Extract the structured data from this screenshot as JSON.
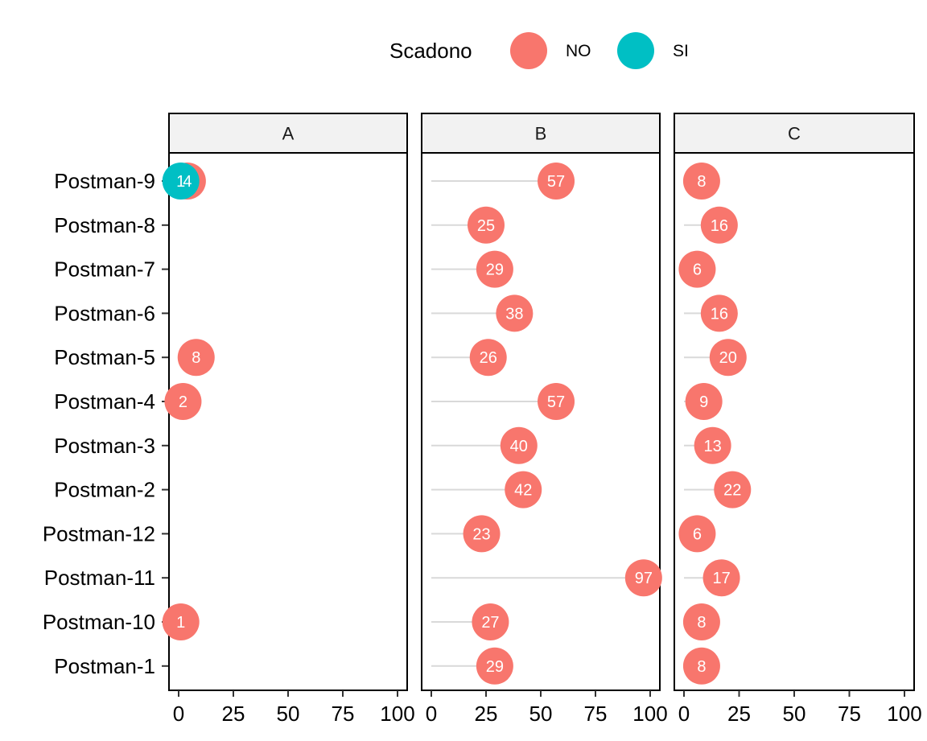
{
  "legend": {
    "title": "Scadono",
    "items": [
      {
        "label": "NO",
        "color": "#F8766D"
      },
      {
        "label": "SI",
        "color": "#00BFC4"
      }
    ]
  },
  "chart_data": {
    "type": "scatter",
    "subtype": "faceted lollipop (dot plot with segments)",
    "facets": [
      "A",
      "B",
      "C"
    ],
    "categories": [
      "Postman-9",
      "Postman-8",
      "Postman-7",
      "Postman-6",
      "Postman-5",
      "Postman-4",
      "Postman-3",
      "Postman-2",
      "Postman-12",
      "Postman-11",
      "Postman-10",
      "Postman-1"
    ],
    "x_ticks": [
      "0",
      "25",
      "50",
      "75",
      "100"
    ],
    "xlim": [
      0,
      100
    ],
    "legend_title": "Scadono",
    "legend_position": "top",
    "grid": false,
    "points": [
      {
        "facet": "A",
        "category": "Postman-9",
        "group": "NO",
        "value": 4
      },
      {
        "facet": "A",
        "category": "Postman-9",
        "group": "SI",
        "value": 1
      },
      {
        "facet": "A",
        "category": "Postman-5",
        "group": "NO",
        "value": 8
      },
      {
        "facet": "A",
        "category": "Postman-4",
        "group": "NO",
        "value": 2
      },
      {
        "facet": "A",
        "category": "Postman-10",
        "group": "NO",
        "value": 1
      },
      {
        "facet": "B",
        "category": "Postman-9",
        "group": "NO",
        "value": 57
      },
      {
        "facet": "B",
        "category": "Postman-8",
        "group": "NO",
        "value": 25
      },
      {
        "facet": "B",
        "category": "Postman-7",
        "group": "NO",
        "value": 29
      },
      {
        "facet": "B",
        "category": "Postman-6",
        "group": "NO",
        "value": 38
      },
      {
        "facet": "B",
        "category": "Postman-5",
        "group": "NO",
        "value": 26
      },
      {
        "facet": "B",
        "category": "Postman-4",
        "group": "NO",
        "value": 57
      },
      {
        "facet": "B",
        "category": "Postman-3",
        "group": "NO",
        "value": 40
      },
      {
        "facet": "B",
        "category": "Postman-2",
        "group": "NO",
        "value": 42
      },
      {
        "facet": "B",
        "category": "Postman-12",
        "group": "NO",
        "value": 23
      },
      {
        "facet": "B",
        "category": "Postman-11",
        "group": "NO",
        "value": 97
      },
      {
        "facet": "B",
        "category": "Postman-10",
        "group": "NO",
        "value": 27
      },
      {
        "facet": "B",
        "category": "Postman-1",
        "group": "NO",
        "value": 29
      },
      {
        "facet": "C",
        "category": "Postman-9",
        "group": "NO",
        "value": 8
      },
      {
        "facet": "C",
        "category": "Postman-8",
        "group": "NO",
        "value": 16
      },
      {
        "facet": "C",
        "category": "Postman-7",
        "group": "NO",
        "value": 6
      },
      {
        "facet": "C",
        "category": "Postman-6",
        "group": "NO",
        "value": 16
      },
      {
        "facet": "C",
        "category": "Postman-5",
        "group": "NO",
        "value": 20
      },
      {
        "facet": "C",
        "category": "Postman-4",
        "group": "NO",
        "value": 9
      },
      {
        "facet": "C",
        "category": "Postman-3",
        "group": "NO",
        "value": 13
      },
      {
        "facet": "C",
        "category": "Postman-2",
        "group": "NO",
        "value": 22
      },
      {
        "facet": "C",
        "category": "Postman-12",
        "group": "NO",
        "value": 6
      },
      {
        "facet": "C",
        "category": "Postman-11",
        "group": "NO",
        "value": 17
      },
      {
        "facet": "C",
        "category": "Postman-10",
        "group": "NO",
        "value": 8
      },
      {
        "facet": "C",
        "category": "Postman-1",
        "group": "NO",
        "value": 8
      }
    ]
  }
}
